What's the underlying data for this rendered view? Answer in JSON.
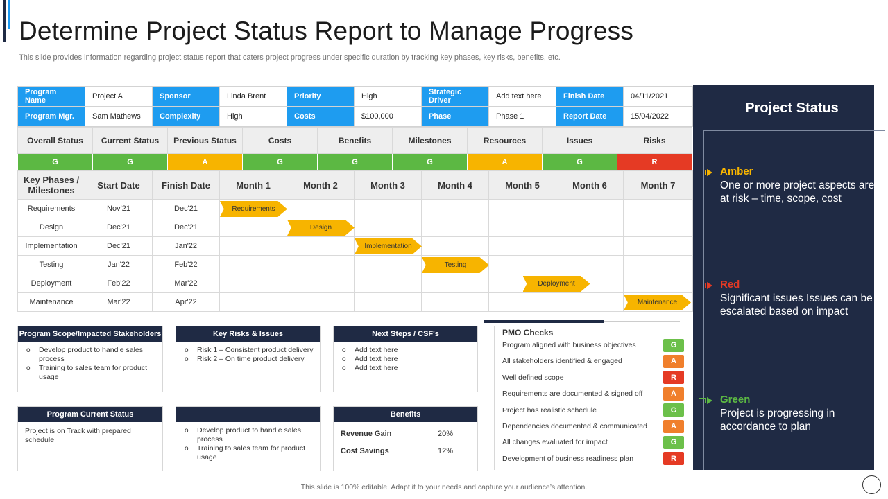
{
  "title": "Determine Project Status Report to Manage Progress",
  "subtitle": "This slide provides information regarding project status report that caters project progress under specific duration by tracking key phases, key risks, benefits, etc.",
  "info": {
    "rows": [
      [
        {
          "label": "Program Name",
          "value": "Project A"
        },
        {
          "label": "Sponsor",
          "value": "Linda Brent"
        },
        {
          "label": "Priority",
          "value": "High"
        },
        {
          "label": "Strategic Driver",
          "value": "Add text here"
        },
        {
          "label": "Finish Date",
          "value": "04/11/2021"
        }
      ],
      [
        {
          "label": "Program Mgr.",
          "value": "Sam Mathews"
        },
        {
          "label": "Complexity",
          "value": "High"
        },
        {
          "label": "Costs",
          "value": "$100,000"
        },
        {
          "label": "Phase",
          "value": "Phase 1"
        },
        {
          "label": "Report Date",
          "value": "15/04/2022"
        }
      ]
    ]
  },
  "status": {
    "headers": [
      "Overall Status",
      "Current Status",
      "Previous Status",
      "Costs",
      "Benefits",
      "Milestones",
      "Resources",
      "Issues",
      "Risks"
    ],
    "values": [
      "G",
      "G",
      "A",
      "G",
      "G",
      "G",
      "A",
      "G",
      "R"
    ]
  },
  "gantt": {
    "headers": [
      "Key Phases / Milestones",
      "Start Date",
      "Finish Date",
      "Month 1",
      "Month 2",
      "Month 3",
      "Month 4",
      "Month 5",
      "Month 6",
      "Month 7"
    ],
    "rows": [
      {
        "phase": "Requirements",
        "start": "Nov'21",
        "finish": "Dec'21",
        "month": 1
      },
      {
        "phase": "Design",
        "start": "Dec'21",
        "finish": "Dec'21",
        "month": 2
      },
      {
        "phase": "Implementation",
        "start": "Dec'21",
        "finish": "Jan'22",
        "month": 3
      },
      {
        "phase": "Testing",
        "start": "Jan'22",
        "finish": "Feb'22",
        "month": 4
      },
      {
        "phase": "Deployment",
        "start": "Feb'22",
        "finish": "Mar'22",
        "month": 5.5
      },
      {
        "phase": "Maintenance",
        "start": "Mar'22",
        "finish": "Apr'22",
        "month": 7
      }
    ]
  },
  "boxes": {
    "scope": {
      "title": "Program Scope/Impacted Stakeholders",
      "items": [
        "Develop product to handle sales process",
        "Training to sales team for product usage"
      ]
    },
    "risks": {
      "title": "Key Risks & Issues",
      "items": [
        "Risk 1 – Consistent product delivery",
        "Risk 2 – On time product delivery"
      ]
    },
    "next": {
      "title": "Next Steps / CSF's",
      "items": [
        "Add text here",
        "Add text here",
        "Add text here"
      ]
    },
    "current": {
      "title": "Program Current Status",
      "text": "Project is on Track with prepared schedule"
    },
    "blank": {
      "title": "",
      "items": [
        "Develop product to handle sales process",
        "Training to sales team for product usage"
      ]
    },
    "benefits": {
      "title": "Benefits",
      "rows": [
        {
          "label": "Revenue Gain",
          "value": "20%"
        },
        {
          "label": "Cost Savings",
          "value": "12%"
        }
      ]
    }
  },
  "pmo": {
    "title": "PMO Checks",
    "items": [
      {
        "label": "Program aligned with business objectives",
        "status": "G"
      },
      {
        "label": "All stakeholders identified & engaged",
        "status": "A"
      },
      {
        "label": "Well defined scope",
        "status": "R"
      },
      {
        "label": "Requirements are documented & signed off",
        "status": "A"
      },
      {
        "label": "Project has realistic schedule",
        "status": "G"
      },
      {
        "label": "Dependencies documented & communicated",
        "status": "A"
      },
      {
        "label": "All changes evaluated for impact",
        "status": "G"
      },
      {
        "label": "Development of business readiness plan",
        "status": "R"
      }
    ]
  },
  "panel": {
    "title": "Project Status",
    "legend": [
      {
        "name": "Amber",
        "desc": "One or more project aspects are at risk – time, scope, cost",
        "color": "#f7b400"
      },
      {
        "name": "Red",
        "desc": "Significant issues Issues can be escalated based on impact",
        "color": "#e53a24"
      },
      {
        "name": "Green",
        "desc": "Project is progressing in accordance to plan",
        "color": "#5cb843"
      }
    ]
  },
  "footer": "This slide is 100% editable. Adapt it to your needs and capture your audience’s attention.",
  "colors": {
    "navy": "#1f2a44",
    "blue": "#1e9cf0",
    "green": "#5cb843",
    "amber": "#f7b400",
    "red": "#e53a24",
    "orange": "#f07f2c"
  }
}
